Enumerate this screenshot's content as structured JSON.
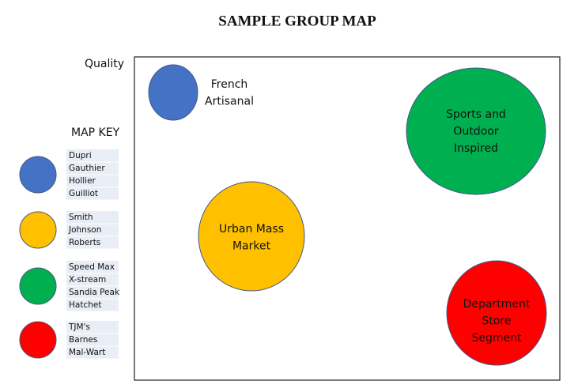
{
  "title": "SAMPLE GROUP MAP",
  "axis_label": "Quality",
  "key_title": "MAP KEY",
  "key": [
    {
      "color": "#4472c4",
      "names": [
        "Dupri",
        "Gauthier",
        "Hollier",
        "Guilliot"
      ]
    },
    {
      "color": "#ffc000",
      "names": [
        "Smith",
        "Johnson",
        "Roberts"
      ]
    },
    {
      "color": "#00b050",
      "names": [
        "Speed Max",
        "X-stream",
        "Sandia Peak",
        "Hatchet"
      ]
    },
    {
      "color": "#ff0000",
      "names": [
        "TJM's",
        "Barnes",
        "Mal-Wart"
      ]
    }
  ],
  "groups": [
    {
      "label": [
        "French",
        "Artisanal"
      ],
      "color": "#4472c4"
    },
    {
      "label": [
        "Sports and",
        "Outdoor",
        "Inspired"
      ],
      "color": "#00b050"
    },
    {
      "label": [
        "Urban Mass",
        "Market"
      ],
      "color": "#ffc000"
    },
    {
      "label": [
        "Department",
        "Store",
        "Segment"
      ],
      "color": "#ff0000"
    }
  ]
}
